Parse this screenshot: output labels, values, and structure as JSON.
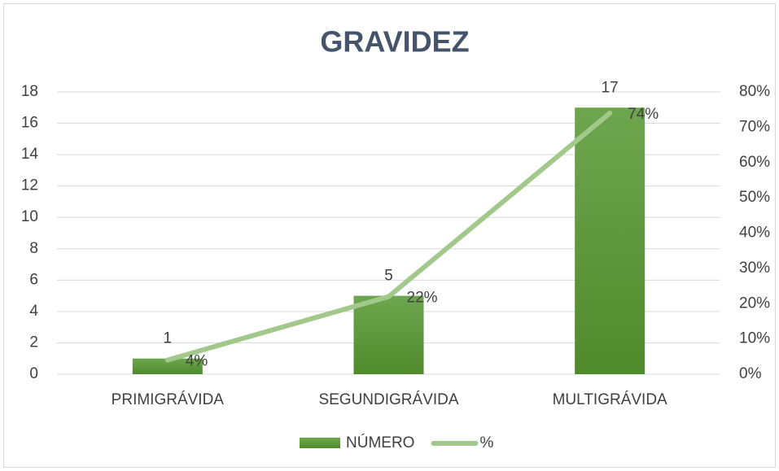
{
  "chart_data": {
    "type": "bar_line",
    "title": "GRAVIDEZ",
    "categories": [
      "PRIMIGRÁVIDA",
      "SEGUNDIGRÁVIDA",
      "MULTIGRÁVIDA"
    ],
    "series": [
      {
        "name": "NÚMERO",
        "type": "bar",
        "color": "#5b9b35",
        "values": [
          1,
          5,
          17
        ]
      },
      {
        "name": "%",
        "type": "line",
        "axis": "y2",
        "color": "#a2c98b",
        "values": [
          4,
          22,
          74
        ],
        "value_labels": [
          "4%",
          "22%",
          "74%"
        ]
      }
    ],
    "ylim": [
      0,
      18
    ],
    "yticks": [
      0,
      2,
      4,
      6,
      8,
      10,
      12,
      14,
      16,
      18
    ],
    "y2lim": [
      0,
      80
    ],
    "y2ticks": [
      {
        "value": 0,
        "label": "0%"
      },
      {
        "value": 10,
        "label": "10%"
      },
      {
        "value": 20,
        "label": "20%"
      },
      {
        "value": 30,
        "label": "30%"
      },
      {
        "value": 40,
        "label": "40%"
      },
      {
        "value": 50,
        "label": "50%"
      },
      {
        "value": 60,
        "label": "60%"
      },
      {
        "value": 70,
        "label": "70%"
      },
      {
        "value": 80,
        "label": "80%"
      }
    ],
    "grid": true,
    "legend": "bottom"
  }
}
